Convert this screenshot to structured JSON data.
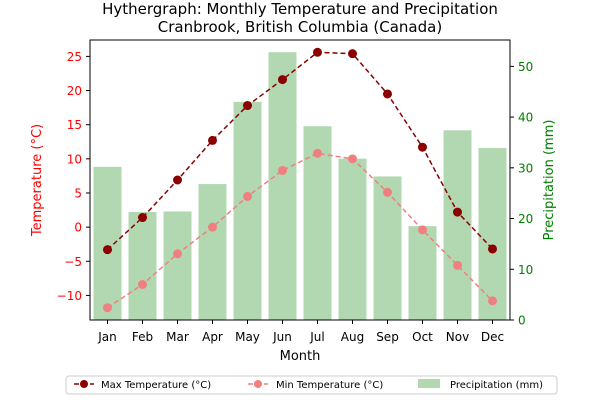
{
  "chart_data": {
    "type": "bar",
    "title": "Hythergraph: Monthly Temperature and Precipitation",
    "subtitle": "Cranbrook, British Columbia (Canada)",
    "xlabel": "Month",
    "ylabel_left": "Temperature (°C)",
    "ylabel_right": "Precipitation (mm)",
    "categories": [
      "Jan",
      "Feb",
      "Mar",
      "Apr",
      "May",
      "Jun",
      "Jul",
      "Aug",
      "Sep",
      "Oct",
      "Nov",
      "Dec"
    ],
    "ylim_left": [
      -13.6,
      27.4
    ],
    "ylim_right": [
      0,
      55.2
    ],
    "yticks_left": [
      -10,
      -5,
      0,
      5,
      10,
      15,
      20,
      25
    ],
    "yticks_right": [
      0,
      10,
      20,
      30,
      40,
      50
    ],
    "grid": false,
    "legend_position": "bottom-center",
    "series": [
      {
        "name": "Max Temperature (°C)",
        "type": "line",
        "axis": "left",
        "color": "#8b0000",
        "values": [
          -3.3,
          1.4,
          6.9,
          12.7,
          17.8,
          21.6,
          25.6,
          25.4,
          19.5,
          11.7,
          2.2,
          -3.2
        ]
      },
      {
        "name": "Min Temperature (°C)",
        "type": "line",
        "axis": "left",
        "color": "#f08080",
        "values": [
          -11.8,
          -8.4,
          -3.9,
          0.0,
          4.5,
          8.3,
          10.8,
          10.0,
          5.1,
          -0.4,
          -5.6,
          -10.8
        ]
      },
      {
        "name": "Precipitation (mm)",
        "type": "bar",
        "axis": "right",
        "color": "#b1d8b1",
        "values": [
          30.2,
          21.3,
          21.4,
          26.8,
          43.0,
          52.8,
          38.2,
          31.8,
          28.3,
          18.5,
          37.4,
          33.9
        ]
      }
    ],
    "colors": {
      "left_axis": "#ff0000",
      "right_axis": "#008000",
      "frame": "#000000"
    }
  }
}
